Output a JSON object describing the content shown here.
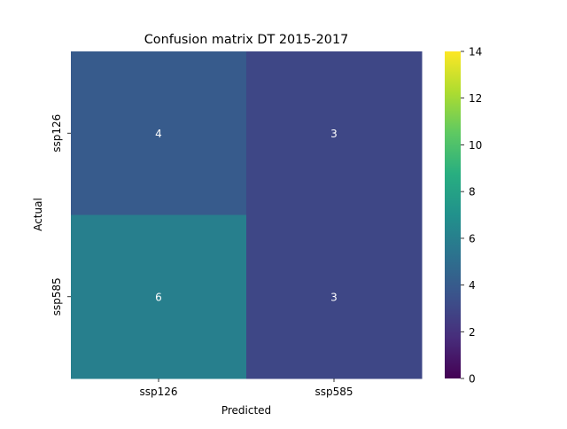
{
  "chart_data": {
    "type": "heatmap",
    "title": "Confusion matrix DT 2015-2017",
    "xlabel": "Predicted",
    "ylabel": "Actual",
    "x_categories": [
      "ssp126",
      "ssp585"
    ],
    "y_categories": [
      "ssp126",
      "ssp585"
    ],
    "values": [
      [
        4,
        3
      ],
      [
        6,
        3
      ]
    ],
    "colormap": "viridis",
    "colorbar": {
      "min": 0,
      "max": 14,
      "ticks": [
        0,
        2,
        4,
        6,
        8,
        10,
        12,
        14
      ]
    },
    "annotations": true,
    "grid": false,
    "annotation_color": "#ffffff"
  }
}
